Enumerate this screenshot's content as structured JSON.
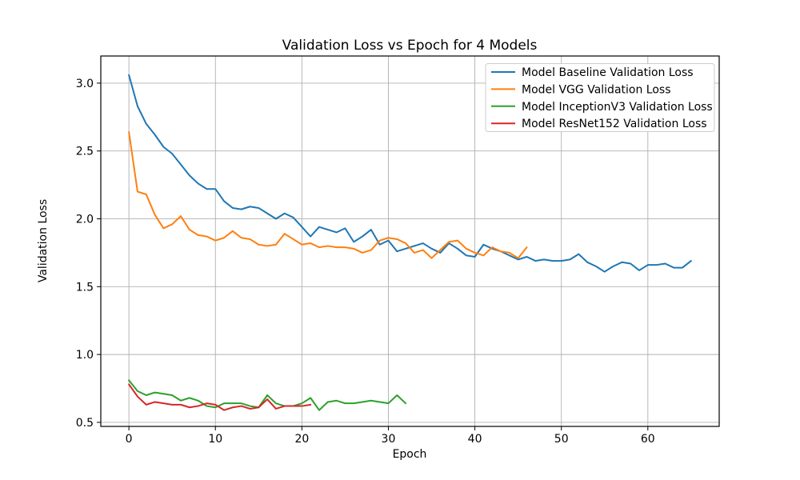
{
  "figure": {
    "background": "#ffffff",
    "spine_color": "#000000",
    "tick_color": "#000000"
  },
  "chart_data": {
    "type": "line",
    "title": "Validation Loss vs Epoch for 4 Models",
    "xlabel": "Epoch",
    "ylabel": "Validation Loss",
    "xlim": [
      -3.25,
      68.25
    ],
    "ylim": [
      0.47,
      3.2
    ],
    "x_ticks": [
      0,
      10,
      20,
      30,
      40,
      50,
      60
    ],
    "y_ticks": [
      0.5,
      1.0,
      1.5,
      2.0,
      2.5,
      3.0
    ],
    "grid": true,
    "grid_color": "#b0b0b0",
    "legend_position": "upper right",
    "legend_border_color": "#cccccc",
    "series": [
      {
        "name": "Model Baseline Validation Loss",
        "color": "#1f77b4",
        "x_start": 0,
        "x_step": 1,
        "values": [
          3.06,
          2.83,
          2.7,
          2.62,
          2.53,
          2.48,
          2.4,
          2.32,
          2.26,
          2.22,
          2.22,
          2.13,
          2.08,
          2.07,
          2.09,
          2.08,
          2.04,
          2.0,
          2.04,
          2.01,
          1.94,
          1.87,
          1.94,
          1.92,
          1.9,
          1.93,
          1.83,
          1.87,
          1.92,
          1.81,
          1.84,
          1.76,
          1.78,
          1.8,
          1.82,
          1.78,
          1.75,
          1.82,
          1.78,
          1.73,
          1.72,
          1.81,
          1.78,
          1.76,
          1.73,
          1.7,
          1.72,
          1.69,
          1.7,
          1.69,
          1.69,
          1.7,
          1.74,
          1.68,
          1.65,
          1.61,
          1.65,
          1.68,
          1.67,
          1.62,
          1.66,
          1.66,
          1.67,
          1.64,
          1.64,
          1.69
        ]
      },
      {
        "name": "Model VGG Validation Loss",
        "color": "#ff7f0e",
        "x_start": 0,
        "x_step": 1,
        "values": [
          2.64,
          2.2,
          2.18,
          2.03,
          1.93,
          1.96,
          2.02,
          1.92,
          1.88,
          1.87,
          1.84,
          1.86,
          1.91,
          1.86,
          1.85,
          1.81,
          1.8,
          1.81,
          1.89,
          1.85,
          1.81,
          1.82,
          1.79,
          1.8,
          1.79,
          1.79,
          1.78,
          1.75,
          1.77,
          1.84,
          1.86,
          1.85,
          1.82,
          1.75,
          1.77,
          1.71,
          1.77,
          1.83,
          1.84,
          1.78,
          1.75,
          1.73,
          1.79,
          1.76,
          1.75,
          1.71,
          1.79
        ]
      },
      {
        "name": "Model InceptionV3 Validation Loss",
        "color": "#2ca02c",
        "x_start": 0,
        "x_step": 1,
        "values": [
          0.81,
          0.73,
          0.7,
          0.72,
          0.71,
          0.7,
          0.66,
          0.68,
          0.66,
          0.62,
          0.61,
          0.64,
          0.64,
          0.64,
          0.62,
          0.61,
          0.7,
          0.64,
          0.62,
          0.62,
          0.64,
          0.68,
          0.59,
          0.65,
          0.66,
          0.64,
          0.64,
          0.65,
          0.66,
          0.65,
          0.64,
          0.7,
          0.64
        ]
      },
      {
        "name": "Model ResNet152 Validation Loss",
        "color": "#d62728",
        "x_start": 0,
        "x_step": 1,
        "values": [
          0.78,
          0.69,
          0.63,
          0.65,
          0.64,
          0.63,
          0.63,
          0.61,
          0.62,
          0.64,
          0.63,
          0.59,
          0.61,
          0.62,
          0.6,
          0.61,
          0.67,
          0.6,
          0.62,
          0.62,
          0.62,
          0.63
        ]
      }
    ]
  }
}
